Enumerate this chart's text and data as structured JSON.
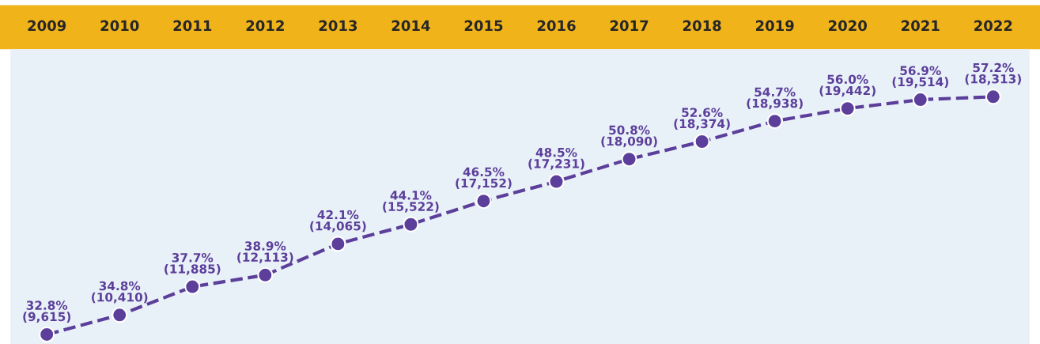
{
  "chart_data": {
    "type": "line",
    "categories": [
      "2009",
      "2010",
      "2011",
      "2012",
      "2013",
      "2014",
      "2015",
      "2016",
      "2017",
      "2018",
      "2019",
      "2020",
      "2021",
      "2022"
    ],
    "series": [
      {
        "color": "#5b3f9a",
        "values": [
          32.8,
          34.8,
          37.7,
          38.9,
          42.1,
          44.1,
          46.5,
          48.5,
          50.8,
          52.6,
          54.7,
          56.0,
          56.9,
          57.2
        ],
        "value_labels": [
          "32.8%\n(9,615)",
          "34.8%\n(10,410)",
          "37.7%\n(11,885)",
          "38.9%\n(12,113)",
          "42.1%\n(14,065)",
          "44.1%\n(15,522)",
          "46.5%\n(17,152)",
          "48.5%\n(17,231)",
          "50.8%\n(18,090)",
          "52.6%\n(18,374)",
          "54.7%\n(18,938)",
          "56.0%\n(19,442)",
          "56.9%\n(19,514)",
          "57.2%\n(18,313)"
        ]
      }
    ],
    "marker": "circle",
    "line_style": "dashed",
    "grid": false,
    "legend": false,
    "tick_labels": "x"
  }
}
